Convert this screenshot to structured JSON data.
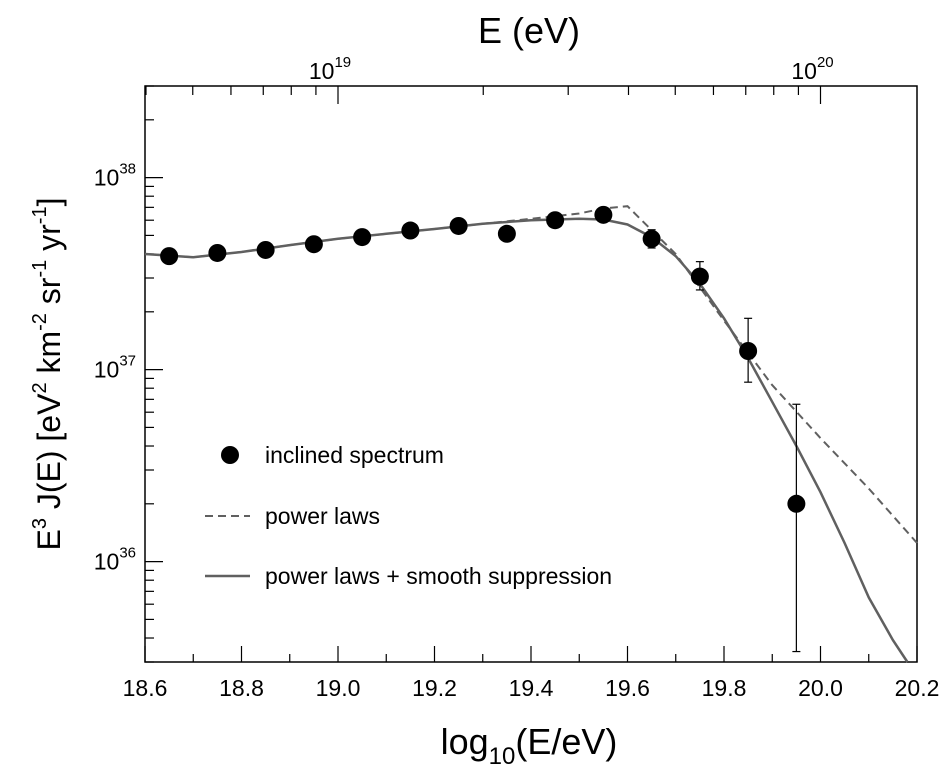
{
  "chart_data": {
    "type": "scatter",
    "title": "",
    "top_axis_label": "E (eV)",
    "top_ticks": [
      {
        "base": "10",
        "exp": "19",
        "logE": 19.0
      },
      {
        "base": "10",
        "exp": "20",
        "logE": 20.0
      }
    ],
    "xlabel": {
      "pre": "log",
      "sub": "10",
      "post": "(E/eV)"
    },
    "ylabel": {
      "parts": [
        {
          "t": "E"
        },
        {
          "t": "3",
          "sup": true
        },
        {
          "t": " J(E)  [eV"
        },
        {
          "t": "2",
          "sup": true
        },
        {
          "t": " km"
        },
        {
          "t": "-2",
          "sup": true
        },
        {
          "t": " sr"
        },
        {
          "t": "-1",
          "sup": true
        },
        {
          "t": " yr"
        },
        {
          "t": "-1",
          "sup": true
        },
        {
          "t": "]"
        }
      ]
    },
    "xlim": [
      18.6,
      20.2
    ],
    "ylim": [
      3e+35,
      3e+38
    ],
    "y_scale": "log",
    "x_ticks": [
      "18.6",
      "18.8",
      "19.0",
      "19.2",
      "19.4",
      "19.6",
      "19.8",
      "20.0",
      "20.2"
    ],
    "y_ticks": [
      {
        "base": "10",
        "exp": "36",
        "value": 1e+36
      },
      {
        "base": "10",
        "exp": "37",
        "value": 1e+37
      },
      {
        "base": "10",
        "exp": "38",
        "value": 1e+38
      }
    ],
    "series": [
      {
        "name": "inclined spectrum",
        "kind": "points",
        "x": [
          18.65,
          18.75,
          18.85,
          18.95,
          19.05,
          19.15,
          19.25,
          19.35,
          19.45,
          19.55,
          19.65,
          19.75,
          19.85,
          19.95
        ],
        "y": [
          3.9e+37,
          4.05e+37,
          4.2e+37,
          4.5e+37,
          4.9e+37,
          5.3e+37,
          5.6e+37,
          5.1e+37,
          6e+37,
          6.4e+37,
          4.8e+37,
          3.05e+37,
          1.25e+37,
          2e+36
        ],
        "y_err_low": [
          3.75e+37,
          3.9e+37,
          4.05e+37,
          4.35e+37,
          4.75e+37,
          5.15e+37,
          5.45e+37,
          4.95e+37,
          5.8e+37,
          6.1e+37,
          4.3e+37,
          2.6e+37,
          8.6e+36,
          3.4e+35
        ],
        "y_err_high": [
          4.05e+37,
          4.2e+37,
          4.35e+37,
          4.65e+37,
          5.05e+37,
          5.45e+37,
          5.75e+37,
          5.25e+37,
          6.2e+37,
          6.7e+37,
          5.35e+37,
          3.65e+37,
          1.85e+37,
          6.6e+36
        ]
      },
      {
        "name": "power laws",
        "kind": "dashed-line",
        "x": [
          18.6,
          18.7,
          18.8,
          18.9,
          19.0,
          19.1,
          19.2,
          19.3,
          19.4,
          19.5,
          19.55,
          19.6,
          19.7,
          19.8,
          19.9,
          20.0,
          20.1,
          20.2
        ],
        "y": [
          4e+37,
          3.85e+37,
          4.1e+37,
          4.45e+37,
          4.8e+37,
          5.1e+37,
          5.4e+37,
          5.75e+37,
          6.1e+37,
          6.5e+37,
          6.9e+37,
          7.1e+37,
          4e+37,
          1.8e+37,
          8.3e+36,
          4.4e+36,
          2.4e+36,
          1.25e+36
        ]
      },
      {
        "name": "power laws + smooth suppression",
        "kind": "solid-line",
        "x": [
          18.6,
          18.7,
          18.8,
          18.9,
          19.0,
          19.1,
          19.2,
          19.3,
          19.4,
          19.5,
          19.55,
          19.6,
          19.65,
          19.7,
          19.75,
          19.8,
          19.85,
          19.9,
          19.95,
          20.0,
          20.05,
          20.1,
          20.15,
          20.18
        ],
        "y": [
          4e+37,
          3.85e+37,
          4.1e+37,
          4.45e+37,
          4.8e+37,
          5.1e+37,
          5.4e+37,
          5.75e+37,
          6e+37,
          6.1e+37,
          6.05e+37,
          5.7e+37,
          4.9e+37,
          3.9e+37,
          2.8e+37,
          1.85e+37,
          1.15e+37,
          6.8e+36,
          4e+36,
          2.3e+36,
          1.25e+36,
          6.5e+35,
          3.9e+35,
          3e+35
        ]
      }
    ],
    "legend": [
      {
        "label": "inclined spectrum",
        "symbol": "marker"
      },
      {
        "label": "power laws",
        "symbol": "dashed"
      },
      {
        "label": "power laws + smooth suppression",
        "symbol": "solid"
      }
    ],
    "legend_position": "lower-left",
    "grid": false,
    "colors": {
      "points": "#000000",
      "dashed": "#606060",
      "solid": "#606060"
    }
  }
}
